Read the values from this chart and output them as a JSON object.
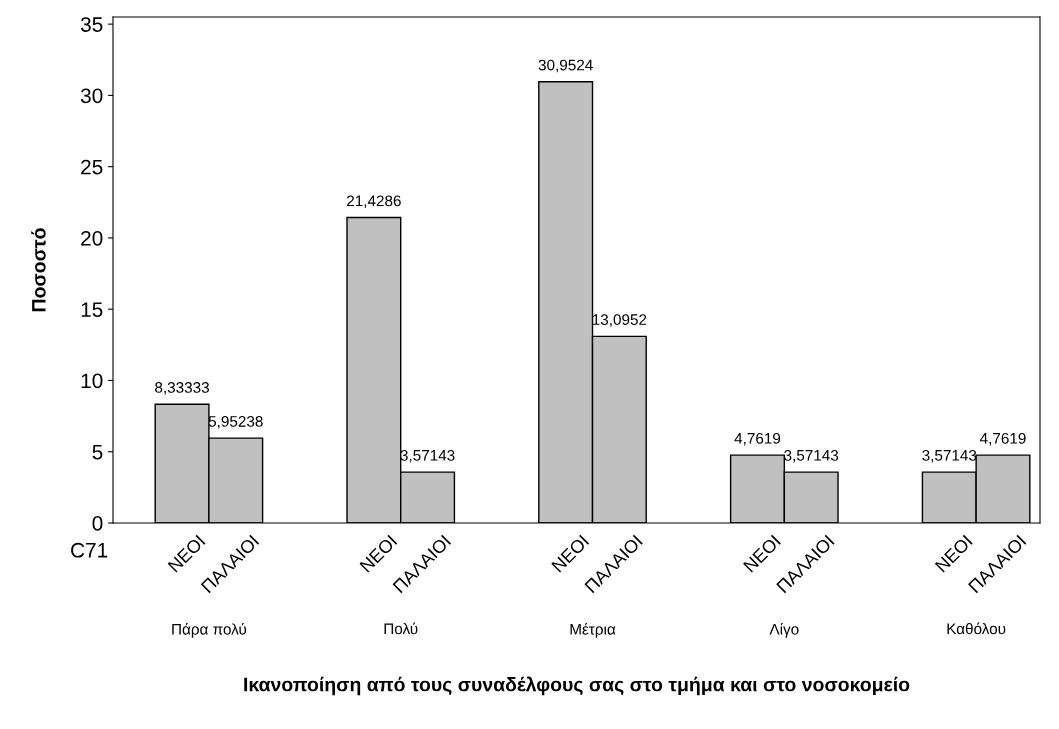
{
  "chart_data": {
    "type": "bar",
    "xlabel": "Ικανοποίηση από τους συναδέλφους σας στο τμήμα και στο νοσοκομείο",
    "ylabel": "Ποσοστό",
    "categories": [
      "Πάρα πολύ",
      "Πολύ",
      "Μέτρια",
      "Λίγο",
      "Καθόλου"
    ],
    "series": [
      {
        "name": "ΝΕΟΙ",
        "color": "#c0c0c0",
        "values": [
          8.33333,
          21.4286,
          30.9524,
          4.7619,
          3.57143
        ],
        "value_labels": [
          "8,33333",
          "21,4286",
          "30,9524",
          "4,7619",
          "3,57143"
        ]
      },
      {
        "name": "ΠΑΛΑΙΟΙ",
        "color": "#c0c0c0",
        "values": [
          5.95238,
          3.57143,
          13.0952,
          3.57143,
          4.7619
        ],
        "value_labels": [
          "5,95238",
          "3,57143",
          "13,0952",
          "3,57143",
          "4,7619"
        ]
      }
    ],
    "ylim": [
      0,
      35.5
    ],
    "yticks": [
      0,
      5,
      10,
      15,
      20,
      25,
      30,
      35
    ],
    "grid": false,
    "legend": false,
    "annotations": [
      "C71"
    ]
  }
}
